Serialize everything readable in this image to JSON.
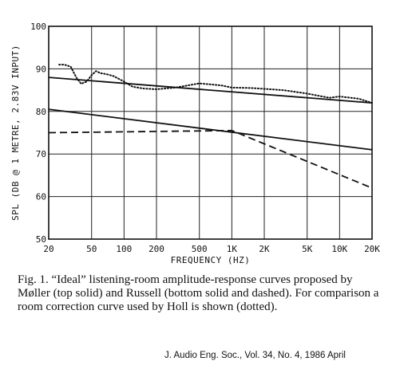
{
  "chart_data": {
    "type": "line",
    "xlabel": "FREQUENCY (HZ)",
    "ylabel": "SPL (DB @ 1 METRE, 2.83V INPUT)",
    "x_scale": "log",
    "xlim": [
      20,
      20000
    ],
    "ylim": [
      50,
      100
    ],
    "x_ticks": [
      20,
      50,
      100,
      200,
      500,
      1000,
      2000,
      5000,
      10000,
      20000
    ],
    "x_tick_labels": [
      "20",
      "50",
      "100",
      "200",
      "500",
      "1K",
      "2K",
      "5K",
      "10K",
      "20K"
    ],
    "y_ticks": [
      50,
      60,
      70,
      80,
      90,
      100
    ],
    "y_tick_labels": [
      "50",
      "60",
      "70",
      "80",
      "90",
      "100"
    ],
    "grid": true,
    "series": [
      {
        "style": "solid",
        "x": [
          20,
          20000
        ],
        "y": [
          88,
          82
        ]
      },
      {
        "style": "solid",
        "x": [
          20,
          20000
        ],
        "y": [
          80.5,
          71
        ]
      },
      {
        "style": "dashed",
        "x": [
          20,
          1000,
          20000
        ],
        "y": [
          75,
          75.5,
          62
        ]
      },
      {
        "style": "dotted",
        "x": [
          25,
          28,
          32,
          36,
          40,
          45,
          50,
          55,
          60,
          70,
          80,
          100,
          120,
          150,
          200,
          300,
          500,
          800,
          1000,
          1500,
          2000,
          3000,
          5000,
          8000,
          10000,
          15000,
          20000
        ],
        "y": [
          91,
          91,
          90.5,
          88,
          86.5,
          87,
          88.5,
          89.5,
          89,
          88.7,
          88.3,
          87,
          85.8,
          85.4,
          85.2,
          85.6,
          86.6,
          86.1,
          85.6,
          85.5,
          85.3,
          85,
          84.2,
          83.2,
          83.5,
          83,
          82
        ]
      }
    ]
  },
  "caption": {
    "text": "Fig. 1. “Ideal” listening-room amplitude-response curves proposed by Møller (top solid) and Russell (bottom solid and dashed). For comparison a room correction curve used by Holl is shown (dotted)."
  },
  "source": {
    "text": "J. Audio Eng. Soc., Vol. 34, No. 4, 1986 April"
  }
}
